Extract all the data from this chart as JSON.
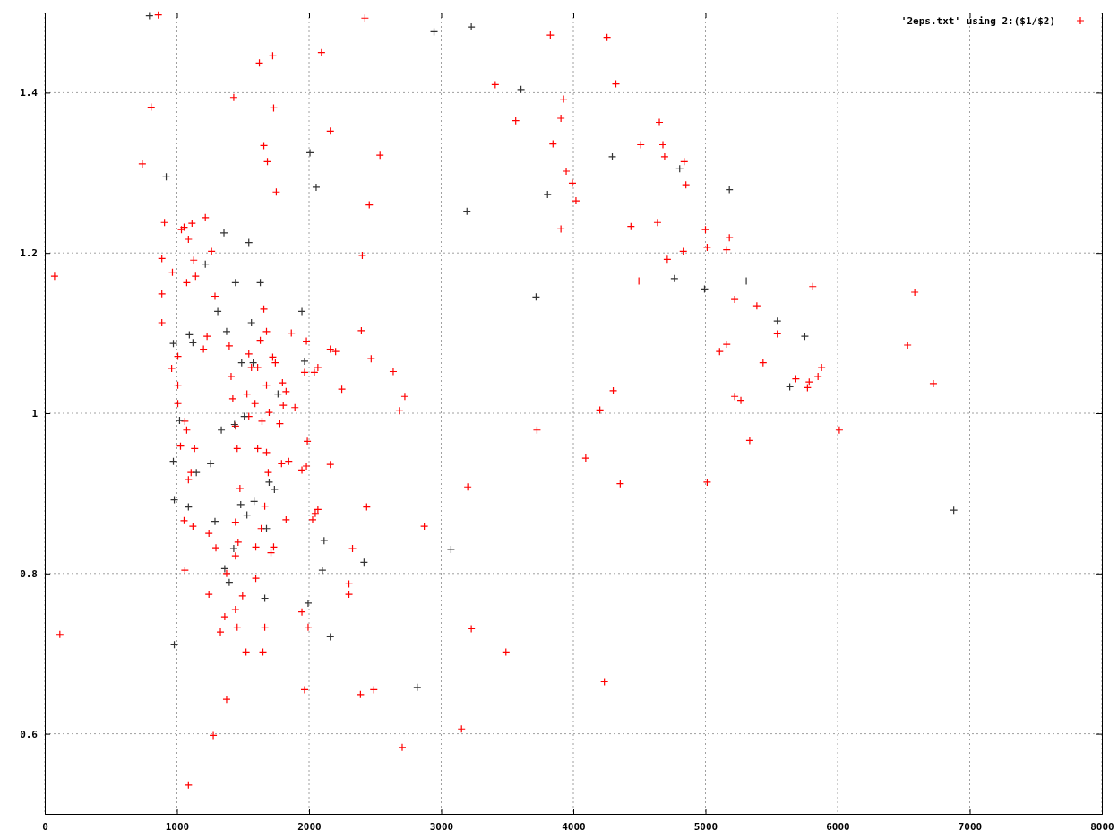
{
  "chart_data": {
    "type": "scatter",
    "xlim": [
      0,
      8000
    ],
    "ylim": [
      0.5,
      1.5
    ],
    "xticks": [
      0,
      1000,
      2000,
      3000,
      4000,
      5000,
      6000,
      7000,
      8000
    ],
    "yticks": [
      0.6,
      0.8,
      1,
      1.2,
      1.4
    ],
    "grid": true,
    "legend": "top right",
    "marker": "cross",
    "series": [
      {
        "name": "'2eps.txt' using 2:($1/$2)",
        "color": "#ff0000",
        "x": [
          74,
          114,
          859,
          738,
          805,
          906,
          886,
          886,
          886,
          960,
          1007,
          966,
          1034,
          1054,
          1087,
          1114,
          1215,
          1127,
          1141,
          1074,
          1262,
          1288,
          1228,
          1201,
          1007,
          1007,
          1027,
          1060,
          1074,
          1107,
          1134,
          1054,
          1087,
          1060,
          1121,
          1242,
          1242,
          1295,
          1275,
          1087,
          1376,
          1443,
          1430,
          1396,
          1410,
          1423,
          1443,
          1456,
          1477,
          1443,
          1463,
          1443,
          1456,
          1523,
          1329,
          1362,
          1376,
          1497,
          1597,
          1597,
          1638,
          1665,
          1691,
          1678,
          1611,
          1544,
          1530,
          1564,
          1544,
          1611,
          1591,
          1644,
          1698,
          1678,
          1631,
          1658,
          1658,
          1685,
          1624,
          1725,
          1732,
          1752,
          1678,
          1725,
          1745,
          1799,
          1826,
          1779,
          1805,
          1792,
          1846,
          1826,
          1732,
          1712,
          1665,
          1651,
          1866,
          1893,
          1980,
          1966,
          1987,
          1980,
          1946,
          1946,
          1993,
          1966,
          2040,
          2067,
          2027,
          2047,
          2067,
          2094,
          2161,
          2161,
          2201,
          2161,
          2248,
          2329,
          2302,
          2302,
          2396,
          2403,
          2423,
          2456,
          2470,
          2436,
          2389,
          2490,
          2537,
          2637,
          2684,
          2725,
          2705,
          2872,
          3201,
          3228,
          3154,
          3490,
          3409,
          3564,
          3725,
          3826,
          3846,
          3906,
          3926,
          3906,
          3946,
          3993,
          4020,
          4094,
          4201,
          4235,
          4255,
          4322,
          4302,
          4355,
          4436,
          4496,
          4510,
          4637,
          4651,
          4678,
          4691,
          4711,
          4832,
          4839,
          4852,
          5000,
          5013,
          5013,
          5161,
          5181,
          5161,
          5107,
          5221,
          5221,
          5268,
          5335,
          5389,
          5436,
          5544,
          5684,
          5772,
          5785,
          5812,
          5852,
          5879,
          6013,
          6530,
          6584,
          6725
        ],
        "values": [
          1.171,
          0.724,
          1.497,
          1.311,
          1.382,
          1.238,
          1.193,
          1.149,
          1.113,
          1.056,
          1.071,
          1.176,
          1.229,
          1.232,
          1.217,
          1.237,
          1.244,
          1.191,
          1.171,
          1.163,
          1.202,
          1.146,
          1.096,
          1.08,
          1.035,
          1.012,
          0.959,
          0.99,
          0.979,
          0.926,
          0.956,
          0.866,
          0.917,
          0.804,
          0.859,
          0.85,
          0.774,
          0.832,
          0.598,
          0.536,
          0.8,
          0.822,
          1.394,
          1.084,
          1.046,
          1.018,
          0.984,
          0.956,
          0.906,
          0.864,
          0.839,
          0.755,
          0.733,
          0.702,
          0.727,
          0.746,
          0.643,
          0.772,
          0.794,
          0.833,
          0.856,
          0.884,
          0.926,
          0.951,
          0.956,
          0.996,
          1.024,
          1.057,
          1.074,
          1.057,
          1.012,
          0.99,
          1.001,
          1.035,
          1.091,
          1.13,
          1.334,
          1.314,
          1.437,
          1.446,
          1.381,
          1.276,
          1.102,
          1.07,
          1.063,
          1.038,
          1.027,
          0.987,
          1.01,
          0.937,
          0.94,
          0.867,
          0.833,
          0.826,
          0.733,
          0.702,
          1.1,
          1.007,
          1.09,
          1.051,
          0.965,
          0.934,
          0.929,
          0.752,
          0.733,
          0.655,
          1.051,
          1.057,
          0.867,
          0.875,
          0.88,
          1.45,
          1.352,
          1.08,
          1.077,
          0.936,
          1.03,
          0.831,
          0.787,
          0.774,
          1.103,
          1.197,
          1.493,
          1.26,
          1.068,
          0.883,
          0.649,
          0.655,
          1.322,
          1.052,
          1.003,
          1.021,
          0.583,
          0.859,
          0.908,
          0.731,
          0.606,
          0.702,
          1.41,
          1.365,
          0.979,
          1.472,
          1.336,
          1.368,
          1.392,
          1.23,
          1.302,
          1.287,
          1.265,
          0.944,
          1.004,
          0.665,
          1.469,
          1.411,
          1.028,
          0.912,
          1.233,
          1.165,
          1.335,
          1.238,
          1.363,
          1.335,
          1.32,
          1.192,
          1.202,
          1.314,
          1.285,
          1.229,
          1.207,
          0.914,
          1.204,
          1.219,
          1.086,
          1.077,
          1.142,
          1.021,
          1.016,
          0.966,
          1.134,
          1.063,
          1.099,
          1.043,
          1.032,
          1.039,
          1.158,
          1.046,
          1.057,
          0.979,
          1.085,
          1.151,
          1.037
        ]
      },
      {
        "color": "#333333",
        "x": [
          792,
          919,
          973,
          973,
          980,
          980,
          1020,
          1087,
          1094,
          1121,
          1147,
          1215,
          1255,
          1288,
          1309,
          1336,
          1356,
          1362,
          1376,
          1396,
          1430,
          1436,
          1443,
          1483,
          1490,
          1510,
          1530,
          1544,
          1564,
          1577,
          1584,
          1631,
          1665,
          1678,
          1698,
          1738,
          1765,
          1946,
          1966,
          1993,
          2007,
          2054,
          2114,
          2101,
          2161,
          2416,
          2819,
          2946,
          3074,
          3195,
          3228,
          3604,
          3718,
          3805,
          4295,
          4805,
          4765,
          4993,
          5181,
          5309,
          5544,
          5638,
          5752,
          6879
        ],
        "values": [
          1.496,
          1.295,
          1.087,
          0.94,
          0.892,
          0.711,
          0.991,
          0.883,
          1.098,
          1.088,
          0.926,
          1.186,
          0.937,
          0.865,
          1.127,
          0.979,
          1.225,
          0.806,
          1.102,
          0.789,
          0.831,
          0.986,
          1.163,
          0.886,
          1.063,
          0.996,
          0.873,
          1.213,
          1.113,
          1.063,
          0.89,
          1.163,
          0.769,
          0.856,
          0.914,
          0.905,
          1.024,
          1.127,
          1.065,
          0.763,
          1.325,
          1.282,
          0.841,
          0.804,
          0.721,
          0.814,
          0.658,
          1.476,
          0.83,
          1.252,
          1.482,
          1.404,
          1.145,
          1.273,
          1.32,
          1.305,
          1.168,
          1.155,
          1.279,
          1.165,
          1.115,
          1.033,
          1.096,
          0.879
        ]
      }
    ]
  }
}
